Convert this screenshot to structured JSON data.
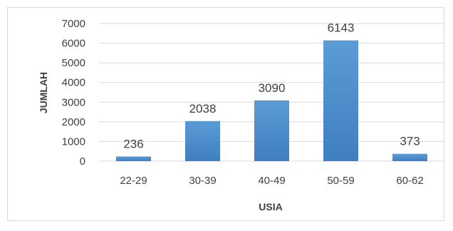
{
  "chart_data": {
    "type": "bar",
    "title": "",
    "xlabel": "USIA",
    "ylabel": "JUMLAH",
    "categories": [
      "22-29",
      "30-39",
      "40-49",
      "50-59",
      "60-62"
    ],
    "values": [
      236,
      2038,
      3090,
      6143,
      373
    ],
    "data_labels": [
      "236",
      "2038",
      "3090",
      "6143",
      "373"
    ],
    "ylim": [
      0,
      7000
    ],
    "yticks": [
      "0",
      "1000",
      "2000",
      "3000",
      "4000",
      "5000",
      "6000",
      "7000"
    ],
    "grid": true,
    "legend": "none",
    "bar_color": "#5b9bd5",
    "bar_color_dark": "#3f7fc0"
  }
}
